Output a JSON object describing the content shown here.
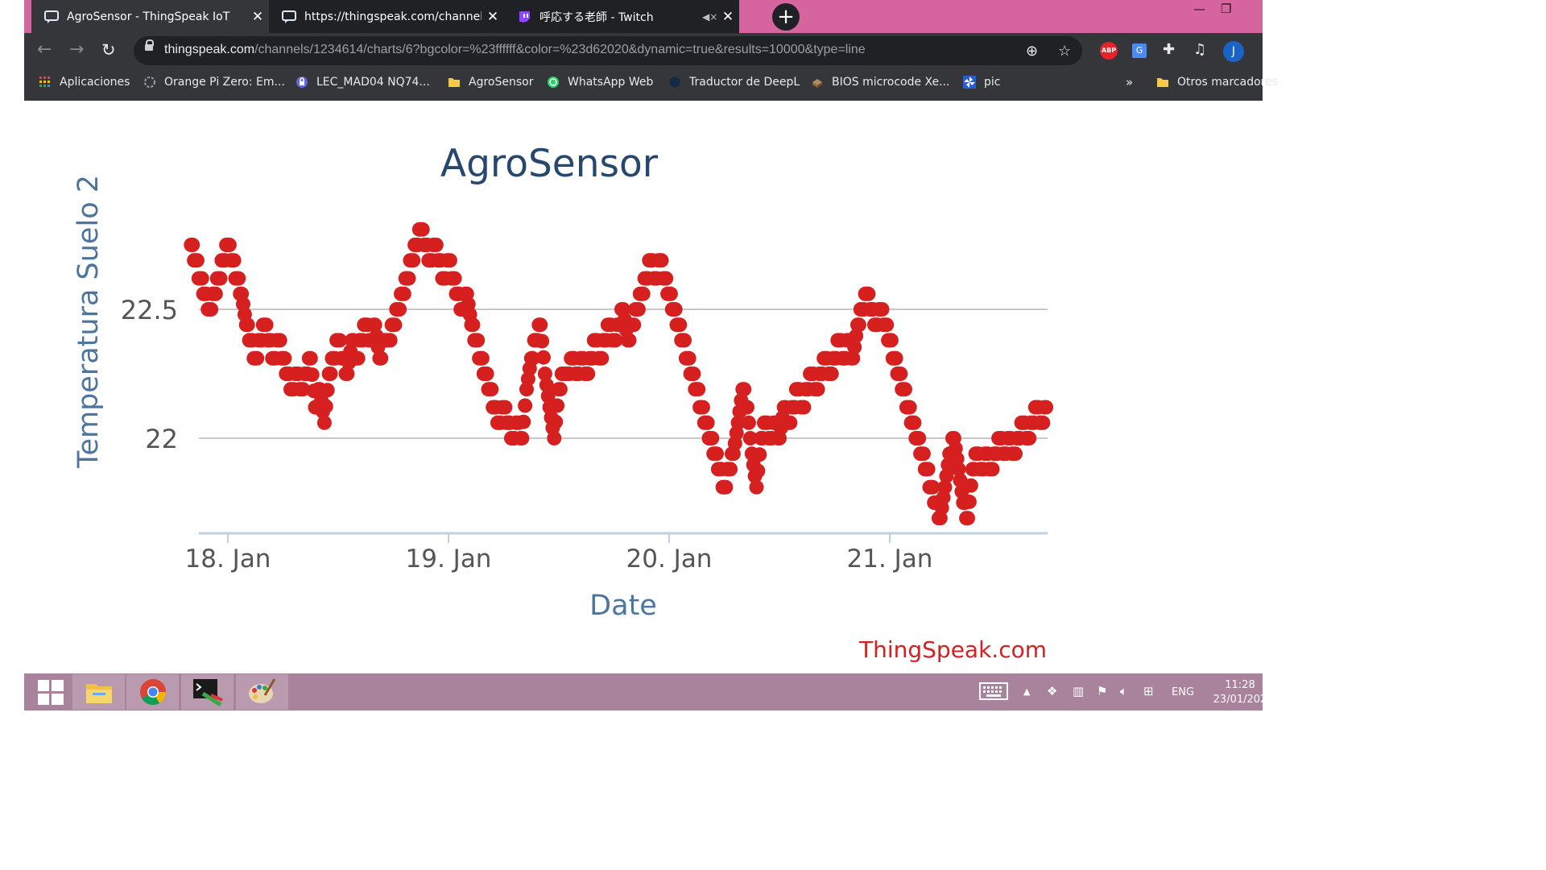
{
  "browser": {
    "tabs": [
      {
        "title": "AgroSensor - ThingSpeak IoT",
        "active": true
      },
      {
        "title": "https://thingspeak.com/channels",
        "active": false
      },
      {
        "title": "呼応する老師 - Twitch",
        "active": false
      }
    ],
    "url_host": "thingspeak.com",
    "url_path": "/channels/1234614/charts/6?bgcolor=%23ffffff&color=%23d62020&dynamic=true&results=10000&type=line",
    "extensions": {
      "abp_label": "ABP",
      "translate_label": "G",
      "profile_initial": "J"
    },
    "bookmarks": [
      {
        "label": "Aplicaciones",
        "icon": "apps-grid-icon"
      },
      {
        "label": "Orange Pi Zero: Em...",
        "icon": "site-icon"
      },
      {
        "label": "LEC_MAD04 NQ74...",
        "icon": "lock-site-icon"
      },
      {
        "label": "AgroSensor",
        "icon": "folder-icon"
      },
      {
        "label": "WhatsApp Web",
        "icon": "whatsapp-icon"
      },
      {
        "label": "Traductor de DeepL",
        "icon": "deepl-icon"
      },
      {
        "label": "BIOS microcode Xe...",
        "icon": "chip-icon"
      },
      {
        "label": "pic",
        "icon": "pinwheel-icon"
      }
    ],
    "bookmarks_more": "»",
    "other_bookmarks": "Otros marcadores"
  },
  "chart_data": {
    "type": "scatter",
    "title": "AgroSensor",
    "xlabel": "Date",
    "ylabel": "Temperatura Suelo 2",
    "x_ticks": [
      "18. Jan",
      "19. Jan",
      "20. Jan",
      "21. Jan"
    ],
    "y_ticks": [
      22,
      22.5
    ],
    "ylim": [
      21.6,
      22.9
    ],
    "xlim": [
      "2021-01-17T19:00",
      "2021-01-21T18:00"
    ],
    "color": "#d62020",
    "grid": true,
    "credits": "ThingSpeak.com",
    "points": [
      [
        "2021-01-17T20:00",
        22.75
      ],
      [
        "2021-01-17T20:30",
        22.69
      ],
      [
        "2021-01-17T21:00",
        22.62
      ],
      [
        "2021-01-17T21:30",
        22.56
      ],
      [
        "2021-01-17T22:00",
        22.5
      ],
      [
        "2021-01-17T22:30",
        22.56
      ],
      [
        "2021-01-17T23:00",
        22.62
      ],
      [
        "2021-01-17T23:30",
        22.69
      ],
      [
        "2021-01-18T00:00",
        22.75
      ],
      [
        "2021-01-18T00:30",
        22.69
      ],
      [
        "2021-01-18T01:00",
        22.62
      ],
      [
        "2021-01-18T01:30",
        22.56
      ],
      [
        "2021-01-18T02:00",
        22.44
      ],
      [
        "2021-01-18T02:30",
        22.38
      ],
      [
        "2021-01-18T03:00",
        22.31
      ],
      [
        "2021-01-18T03:30",
        22.38
      ],
      [
        "2021-01-18T04:00",
        22.44
      ],
      [
        "2021-01-18T04:30",
        22.38
      ],
      [
        "2021-01-18T05:00",
        22.31
      ],
      [
        "2021-01-18T05:30",
        22.38
      ],
      [
        "2021-01-18T06:00",
        22.31
      ],
      [
        "2021-01-18T06:30",
        22.25
      ],
      [
        "2021-01-18T07:00",
        22.19
      ],
      [
        "2021-01-18T07:30",
        22.25
      ],
      [
        "2021-01-18T08:00",
        22.19
      ],
      [
        "2021-01-18T08:30",
        22.25
      ],
      [
        "2021-01-18T09:00",
        22.31
      ],
      [
        "2021-01-18T09:30",
        22.12
      ],
      [
        "2021-01-18T10:00",
        22.19
      ],
      [
        "2021-01-18T10:30",
        22.06
      ],
      [
        "2021-01-18T11:00",
        22.25
      ],
      [
        "2021-01-18T11:30",
        22.31
      ],
      [
        "2021-01-18T12:00",
        22.38
      ],
      [
        "2021-01-18T12:30",
        22.31
      ],
      [
        "2021-01-18T13:00",
        22.25
      ],
      [
        "2021-01-18T13:30",
        22.38
      ],
      [
        "2021-01-18T14:00",
        22.31
      ],
      [
        "2021-01-18T14:30",
        22.38
      ],
      [
        "2021-01-18T15:00",
        22.44
      ],
      [
        "2021-01-18T15:30",
        22.38
      ],
      [
        "2021-01-18T16:00",
        22.44
      ],
      [
        "2021-01-18T16:30",
        22.31
      ],
      [
        "2021-01-18T17:00",
        22.38
      ],
      [
        "2021-01-18T17:30",
        22.38
      ],
      [
        "2021-01-18T18:00",
        22.44
      ],
      [
        "2021-01-18T18:30",
        22.5
      ],
      [
        "2021-01-18T19:00",
        22.56
      ],
      [
        "2021-01-18T19:30",
        22.62
      ],
      [
        "2021-01-18T20:00",
        22.69
      ],
      [
        "2021-01-18T20:30",
        22.75
      ],
      [
        "2021-01-18T21:00",
        22.81
      ],
      [
        "2021-01-18T21:30",
        22.75
      ],
      [
        "2021-01-18T22:00",
        22.69
      ],
      [
        "2021-01-18T22:30",
        22.75
      ],
      [
        "2021-01-18T23:00",
        22.69
      ],
      [
        "2021-01-18T23:30",
        22.62
      ],
      [
        "2021-01-19T00:00",
        22.69
      ],
      [
        "2021-01-19T00:30",
        22.62
      ],
      [
        "2021-01-19T01:00",
        22.56
      ],
      [
        "2021-01-19T01:30",
        22.5
      ],
      [
        "2021-01-19T02:00",
        22.56
      ],
      [
        "2021-01-19T02:30",
        22.44
      ],
      [
        "2021-01-19T03:00",
        22.38
      ],
      [
        "2021-01-19T03:30",
        22.31
      ],
      [
        "2021-01-19T04:00",
        22.25
      ],
      [
        "2021-01-19T04:30",
        22.19
      ],
      [
        "2021-01-19T05:00",
        22.12
      ],
      [
        "2021-01-19T05:30",
        22.06
      ],
      [
        "2021-01-19T06:00",
        22.12
      ],
      [
        "2021-01-19T06:30",
        22.06
      ],
      [
        "2021-01-19T07:00",
        22
      ],
      [
        "2021-01-19T07:30",
        22.06
      ],
      [
        "2021-01-19T08:00",
        22
      ],
      [
        "2021-01-19T08:30",
        22.19
      ],
      [
        "2021-01-19T09:00",
        22.31
      ],
      [
        "2021-01-19T09:30",
        22.38
      ],
      [
        "2021-01-19T10:00",
        22.44
      ],
      [
        "2021-01-19T10:30",
        22.25
      ],
      [
        "2021-01-19T11:00",
        22.12
      ],
      [
        "2021-01-19T11:30",
        22
      ],
      [
        "2021-01-19T12:00",
        22.19
      ],
      [
        "2021-01-19T12:30",
        22.25
      ],
      [
        "2021-01-19T13:00",
        22.25
      ],
      [
        "2021-01-19T13:30",
        22.31
      ],
      [
        "2021-01-19T14:00",
        22.25
      ],
      [
        "2021-01-19T14:30",
        22.31
      ],
      [
        "2021-01-19T15:00",
        22.25
      ],
      [
        "2021-01-19T15:30",
        22.31
      ],
      [
        "2021-01-19T16:00",
        22.38
      ],
      [
        "2021-01-19T16:30",
        22.31
      ],
      [
        "2021-01-19T17:00",
        22.38
      ],
      [
        "2021-01-19T17:30",
        22.44
      ],
      [
        "2021-01-19T18:00",
        22.38
      ],
      [
        "2021-01-19T18:30",
        22.44
      ],
      [
        "2021-01-19T19:00",
        22.5
      ],
      [
        "2021-01-19T19:30",
        22.38
      ],
      [
        "2021-01-19T20:00",
        22.44
      ],
      [
        "2021-01-19T20:30",
        22.5
      ],
      [
        "2021-01-19T21:00",
        22.56
      ],
      [
        "2021-01-19T21:30",
        22.62
      ],
      [
        "2021-01-19T22:00",
        22.69
      ],
      [
        "2021-01-19T22:30",
        22.62
      ],
      [
        "2021-01-19T23:00",
        22.69
      ],
      [
        "2021-01-19T23:30",
        22.62
      ],
      [
        "2021-01-20T00:00",
        22.56
      ],
      [
        "2021-01-20T00:30",
        22.5
      ],
      [
        "2021-01-20T01:00",
        22.44
      ],
      [
        "2021-01-20T01:30",
        22.38
      ],
      [
        "2021-01-20T02:00",
        22.31
      ],
      [
        "2021-01-20T02:30",
        22.25
      ],
      [
        "2021-01-20T03:00",
        22.19
      ],
      [
        "2021-01-20T03:30",
        22.12
      ],
      [
        "2021-01-20T04:00",
        22.06
      ],
      [
        "2021-01-20T04:30",
        22
      ],
      [
        "2021-01-20T05:00",
        21.94
      ],
      [
        "2021-01-20T05:30",
        21.88
      ],
      [
        "2021-01-20T06:00",
        21.81
      ],
      [
        "2021-01-20T06:30",
        21.88
      ],
      [
        "2021-01-20T07:00",
        21.94
      ],
      [
        "2021-01-20T07:30",
        22.06
      ],
      [
        "2021-01-20T08:00",
        22.19
      ],
      [
        "2021-01-20T08:30",
        22.12
      ],
      [
        "2021-01-20T09:00",
        21.94
      ],
      [
        "2021-01-20T09:30",
        21.81
      ],
      [
        "2021-01-20T10:00",
        22
      ],
      [
        "2021-01-20T10:30",
        22.06
      ],
      [
        "2021-01-20T11:00",
        22
      ],
      [
        "2021-01-20T11:30",
        22.06
      ],
      [
        "2021-01-20T12:00",
        22
      ],
      [
        "2021-01-20T12:30",
        22.12
      ],
      [
        "2021-01-20T13:00",
        22.06
      ],
      [
        "2021-01-20T13:30",
        22.12
      ],
      [
        "2021-01-20T14:00",
        22.19
      ],
      [
        "2021-01-20T14:30",
        22.12
      ],
      [
        "2021-01-20T15:00",
        22.19
      ],
      [
        "2021-01-20T15:30",
        22.25
      ],
      [
        "2021-01-20T16:00",
        22.19
      ],
      [
        "2021-01-20T16:30",
        22.25
      ],
      [
        "2021-01-20T17:00",
        22.31
      ],
      [
        "2021-01-20T17:30",
        22.25
      ],
      [
        "2021-01-20T18:00",
        22.31
      ],
      [
        "2021-01-20T18:30",
        22.38
      ],
      [
        "2021-01-20T19:00",
        22.31
      ],
      [
        "2021-01-20T19:30",
        22.38
      ],
      [
        "2021-01-20T20:00",
        22.31
      ],
      [
        "2021-01-20T20:30",
        22.44
      ],
      [
        "2021-01-20T21:00",
        22.5
      ],
      [
        "2021-01-20T21:30",
        22.56
      ],
      [
        "2021-01-20T22:00",
        22.5
      ],
      [
        "2021-01-20T22:30",
        22.44
      ],
      [
        "2021-01-20T23:00",
        22.5
      ],
      [
        "2021-01-20T23:30",
        22.44
      ],
      [
        "2021-01-21T00:00",
        22.38
      ],
      [
        "2021-01-21T00:30",
        22.31
      ],
      [
        "2021-01-21T01:00",
        22.25
      ],
      [
        "2021-01-21T01:30",
        22.19
      ],
      [
        "2021-01-21T02:00",
        22.12
      ],
      [
        "2021-01-21T02:30",
        22.06
      ],
      [
        "2021-01-21T03:00",
        22
      ],
      [
        "2021-01-21T03:30",
        21.94
      ],
      [
        "2021-01-21T04:00",
        21.88
      ],
      [
        "2021-01-21T04:30",
        21.81
      ],
      [
        "2021-01-21T05:00",
        21.75
      ],
      [
        "2021-01-21T05:30",
        21.69
      ],
      [
        "2021-01-21T06:00",
        21.81
      ],
      [
        "2021-01-21T06:30",
        21.94
      ],
      [
        "2021-01-21T07:00",
        22
      ],
      [
        "2021-01-21T07:30",
        21.88
      ],
      [
        "2021-01-21T08:00",
        21.75
      ],
      [
        "2021-01-21T08:30",
        21.69
      ],
      [
        "2021-01-21T09:00",
        21.88
      ],
      [
        "2021-01-21T09:30",
        21.94
      ],
      [
        "2021-01-21T10:00",
        21.88
      ],
      [
        "2021-01-21T10:30",
        21.94
      ],
      [
        "2021-01-21T11:00",
        21.88
      ],
      [
        "2021-01-21T11:30",
        21.94
      ],
      [
        "2021-01-21T12:00",
        22
      ],
      [
        "2021-01-21T12:30",
        21.94
      ],
      [
        "2021-01-21T13:00",
        22
      ],
      [
        "2021-01-21T13:30",
        21.94
      ],
      [
        "2021-01-21T14:00",
        22
      ],
      [
        "2021-01-21T14:30",
        22.06
      ],
      [
        "2021-01-21T15:00",
        22
      ],
      [
        "2021-01-21T15:30",
        22.06
      ],
      [
        "2021-01-21T16:00",
        22.12
      ],
      [
        "2021-01-21T16:30",
        22.06
      ],
      [
        "2021-01-21T17:00",
        22.12
      ]
    ]
  },
  "taskbar": {
    "apps": [
      "start-icon",
      "file-explorer-icon",
      "chrome-icon",
      "terminal-icon",
      "paint-icon"
    ],
    "language": "ENG",
    "time": "11:28",
    "date": "23/01/202"
  }
}
